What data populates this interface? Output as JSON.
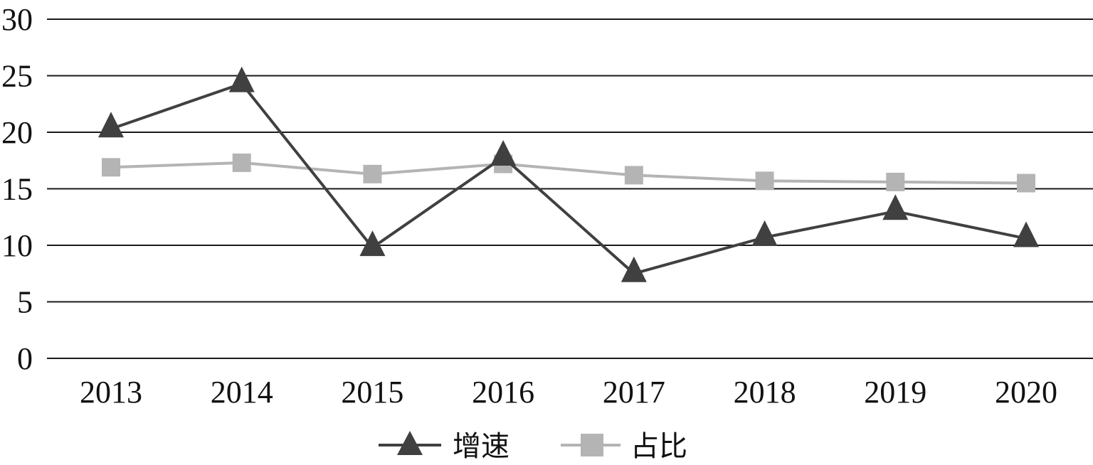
{
  "chart_data": {
    "type": "line",
    "categories": [
      "2013",
      "2014",
      "2015",
      "2016",
      "2017",
      "2018",
      "2019",
      "2020"
    ],
    "series": [
      {
        "name": "增速",
        "values": [
          20.3,
          24.3,
          9.8,
          17.8,
          7.5,
          10.7,
          13.0,
          10.6
        ],
        "color": "#404040",
        "marker": "triangle"
      },
      {
        "name": "占比",
        "values": [
          16.9,
          17.3,
          16.3,
          17.2,
          16.2,
          15.7,
          15.6,
          15.5
        ],
        "color": "#b4b4b4",
        "marker": "square"
      }
    ],
    "yticks": [
      "0",
      "5",
      "10",
      "15",
      "20",
      "25",
      "30"
    ],
    "ylim": [
      0,
      30
    ],
    "grid": "horizontal",
    "legend_position": "bottom-center"
  }
}
